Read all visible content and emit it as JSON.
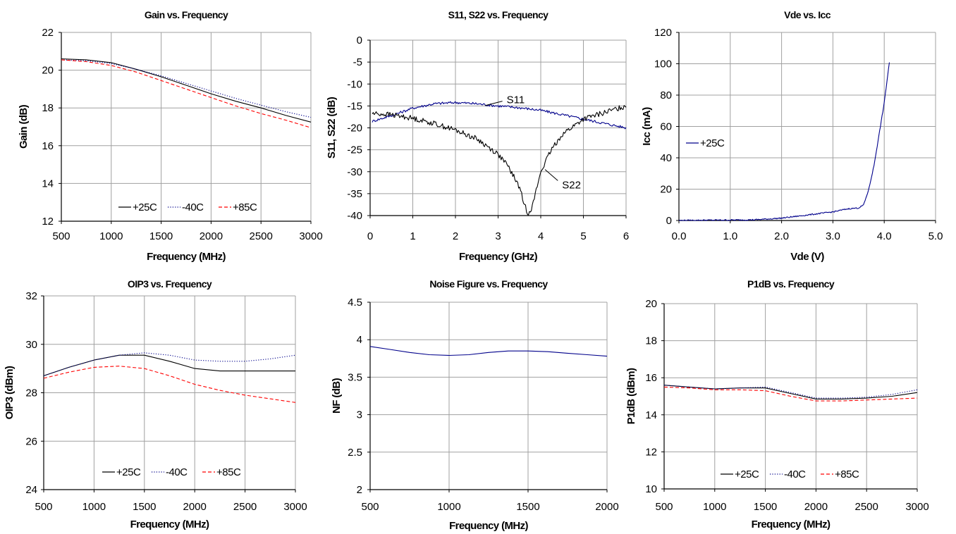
{
  "colors": {
    "t25": "#000000",
    "tm40": "#00008B",
    "t85": "#FF0000",
    "blue": "#00008B",
    "grid": "#A0A0A0"
  },
  "chart_data": [
    {
      "type": "line",
      "title": "Gain vs. Frequency",
      "xlabel": "Frequency (MHz)",
      "ylabel": "Gain (dB)",
      "xlim": [
        500,
        3000
      ],
      "ylim": [
        12,
        22
      ],
      "xticks": [
        500,
        1000,
        1500,
        2000,
        2500,
        3000
      ],
      "yticks": [
        12,
        14,
        16,
        18,
        20,
        22
      ],
      "xtick_labels": [
        "500",
        "1000",
        "1500",
        "2000",
        "2500",
        "3000"
      ],
      "ytick_labels": [
        "12",
        "14",
        "16",
        "18",
        "20",
        "22"
      ],
      "legend_position": "bottom-center",
      "series": [
        {
          "name": "+25C",
          "style": "solid",
          "color": "#000000",
          "in_legend": true,
          "x": [
            500,
            750,
            1000,
            1250,
            1500,
            1750,
            2000,
            2250,
            2500,
            2750,
            3000
          ],
          "y": [
            20.6,
            20.55,
            20.4,
            20.05,
            19.65,
            19.2,
            18.75,
            18.35,
            18.0,
            17.6,
            17.25
          ]
        },
        {
          "name": "-40C",
          "style": "dotted",
          "color": "#00008B",
          "in_legend": true,
          "x": [
            500,
            750,
            1000,
            1250,
            1500,
            1750,
            2000,
            2250,
            2500,
            2750,
            3000
          ],
          "y": [
            20.55,
            20.5,
            20.35,
            20.05,
            19.7,
            19.3,
            18.9,
            18.5,
            18.15,
            17.8,
            17.5
          ]
        },
        {
          "name": "+85C",
          "style": "dashed",
          "color": "#FF0000",
          "in_legend": true,
          "x": [
            500,
            750,
            1000,
            1250,
            1500,
            1750,
            2000,
            2250,
            2500,
            2750,
            3000
          ],
          "y": [
            20.55,
            20.45,
            20.25,
            19.9,
            19.45,
            19.0,
            18.55,
            18.1,
            17.7,
            17.35,
            16.95
          ]
        }
      ]
    },
    {
      "type": "line",
      "title": "S11, S22 vs. Frequency",
      "xlabel": "Frequency (GHz)",
      "ylabel": "S11, S22 (dB)",
      "xlim": [
        0,
        6
      ],
      "ylim": [
        -40,
        0
      ],
      "xticks": [
        0,
        1,
        2,
        3,
        4,
        5,
        6
      ],
      "yticks": [
        -40,
        -35,
        -30,
        -25,
        -20,
        -15,
        -10,
        -5,
        0
      ],
      "xtick_labels": [
        "0",
        "1",
        "2",
        "3",
        "4",
        "5",
        "6"
      ],
      "ytick_labels": [
        "-40",
        "-35",
        "-30",
        "-25",
        "-20",
        "-15",
        "-10",
        "-5",
        "0"
      ],
      "series": [
        {
          "name": "S11",
          "style": "solid",
          "color": "#00008B",
          "in_legend": false,
          "noise": 0.3,
          "x": [
            0.05,
            0.5,
            1,
            1.5,
            2,
            2.5,
            3,
            3.5,
            4,
            4.5,
            5,
            5.5,
            6
          ],
          "y": [
            -18.5,
            -17.2,
            -15.5,
            -14.5,
            -14.2,
            -14.5,
            -15.0,
            -15.4,
            -16.0,
            -17.0,
            -18.0,
            -19.0,
            -20.0
          ]
        },
        {
          "name": "S22",
          "style": "solid",
          "color": "#000000",
          "in_legend": false,
          "noise": 0.6,
          "x": [
            0.05,
            0.5,
            1,
            1.5,
            2,
            2.5,
            3,
            3.25,
            3.5,
            3.6,
            3.7,
            3.8,
            3.9,
            4,
            4.25,
            4.5,
            5,
            5.5,
            6
          ],
          "y": [
            -16.7,
            -17.0,
            -17.8,
            -19.0,
            -20.5,
            -22.5,
            -26.0,
            -29.0,
            -33.5,
            -37.0,
            -39.5,
            -38.0,
            -34.0,
            -30.0,
            -25.0,
            -21.5,
            -18.0,
            -16.5,
            -15.0
          ]
        }
      ],
      "annotations": [
        {
          "text": "S11",
          "x": 3.2,
          "y": -13.6,
          "arrow_to_x": 2.7,
          "arrow_to_y": -14.9
        },
        {
          "text": "S22",
          "x": 4.5,
          "y": -33.0,
          "arrow_to_x": 4.1,
          "arrow_to_y": -29.5
        }
      ]
    },
    {
      "type": "line",
      "title": "Vde vs. Icc",
      "xlabel": "Vde (V)",
      "ylabel": "Icc (mA)",
      "xlim": [
        0,
        5
      ],
      "ylim": [
        0,
        120
      ],
      "xticks": [
        0,
        1,
        2,
        3,
        4,
        5
      ],
      "yticks": [
        0,
        20,
        40,
        60,
        80,
        100,
        120
      ],
      "xtick_labels": [
        "0.0",
        "1.0",
        "2.0",
        "3.0",
        "4.0",
        "5.0"
      ],
      "ytick_labels": [
        "0",
        "20",
        "40",
        "60",
        "80",
        "100",
        "120"
      ],
      "legend_position": "left-middle",
      "series": [
        {
          "name": "+25C",
          "style": "solid",
          "color": "#00008B",
          "in_legend": true,
          "noise": 0.4,
          "x": [
            0,
            0.5,
            1.0,
            1.5,
            2.0,
            2.5,
            3.0,
            3.3,
            3.5,
            3.6,
            3.7,
            3.8,
            3.9,
            4.0,
            4.1
          ],
          "y": [
            0,
            0.2,
            0.3,
            0.5,
            1.5,
            3.5,
            5.5,
            7.5,
            8.0,
            10,
            20,
            35,
            55,
            75,
            101
          ]
        }
      ]
    },
    {
      "type": "line",
      "title": "OIP3 vs. Frequency",
      "xlabel": "Frequency (MHz)",
      "ylabel": "OIP3 (dBm)",
      "xlim": [
        500,
        3000
      ],
      "ylim": [
        24,
        32
      ],
      "xticks": [
        500,
        1000,
        1500,
        2000,
        2500,
        3000
      ],
      "yticks": [
        24,
        26,
        28,
        30,
        32
      ],
      "xtick_labels": [
        "500",
        "1000",
        "1500",
        "2000",
        "2500",
        "3000"
      ],
      "ytick_labels": [
        "24",
        "26",
        "28",
        "30",
        "32"
      ],
      "legend_position": "bottom-center",
      "series": [
        {
          "name": "+25C",
          "style": "solid",
          "color": "#000000",
          "in_legend": true,
          "x": [
            500,
            750,
            1000,
            1250,
            1500,
            1750,
            2000,
            2250,
            2500,
            2750,
            3000
          ],
          "y": [
            28.7,
            29.05,
            29.35,
            29.55,
            29.55,
            29.3,
            29.0,
            28.9,
            28.9,
            28.9,
            28.9
          ]
        },
        {
          "name": "-40C",
          "style": "dotted",
          "color": "#00008B",
          "in_legend": true,
          "x": [
            500,
            750,
            1000,
            1250,
            1500,
            1750,
            2000,
            2250,
            2500,
            2750,
            3000
          ],
          "y": [
            28.7,
            29.05,
            29.35,
            29.55,
            29.65,
            29.55,
            29.35,
            29.3,
            29.3,
            29.4,
            29.55
          ]
        },
        {
          "name": "+85C",
          "style": "dashed",
          "color": "#FF0000",
          "in_legend": true,
          "x": [
            500,
            750,
            1000,
            1250,
            1500,
            1750,
            2000,
            2250,
            2500,
            2750,
            3000
          ],
          "y": [
            28.6,
            28.85,
            29.05,
            29.1,
            29.0,
            28.7,
            28.35,
            28.1,
            27.9,
            27.75,
            27.6
          ]
        }
      ]
    },
    {
      "type": "line",
      "title": "Noise Figure vs. Frequency",
      "xlabel": "Frequency (MHz)",
      "ylabel": "NF (dB)",
      "xlim": [
        500,
        2000
      ],
      "ylim": [
        2,
        4.5
      ],
      "xticks": [
        500,
        1000,
        1500,
        2000
      ],
      "yticks": [
        2,
        2.5,
        3,
        3.5,
        4,
        4.5
      ],
      "xtick_labels": [
        "500",
        "1000",
        "1500",
        "2000"
      ],
      "ytick_labels": [
        "2",
        "2.5",
        "3",
        "3.5",
        "4",
        "4.5"
      ],
      "series": [
        {
          "name": "NF",
          "style": "solid",
          "color": "#00008B",
          "in_legend": false,
          "x": [
            500,
            625,
            750,
            875,
            1000,
            1125,
            1250,
            1375,
            1500,
            1625,
            1750,
            1875,
            2000
          ],
          "y": [
            3.91,
            3.87,
            3.83,
            3.8,
            3.79,
            3.8,
            3.83,
            3.85,
            3.85,
            3.84,
            3.82,
            3.8,
            3.78
          ]
        }
      ]
    },
    {
      "type": "line",
      "title": "P1dB vs. Frequency",
      "xlabel": "Frequency (MHz)",
      "ylabel": "P1dB (dBm)",
      "xlim": [
        500,
        3000
      ],
      "ylim": [
        10,
        20
      ],
      "xticks": [
        500,
        1000,
        1500,
        2000,
        2500,
        3000
      ],
      "yticks": [
        10,
        12,
        14,
        16,
        18,
        20
      ],
      "xtick_labels": [
        "500",
        "1000",
        "1500",
        "2000",
        "2500",
        "3000"
      ],
      "ytick_labels": [
        "10",
        "12",
        "14",
        "16",
        "18",
        "20"
      ],
      "legend_position": "bottom-center",
      "series": [
        {
          "name": "+25C",
          "style": "solid",
          "color": "#000000",
          "in_legend": true,
          "x": [
            500,
            750,
            1000,
            1250,
            1500,
            1750,
            2000,
            2250,
            2500,
            2750,
            3000
          ],
          "y": [
            15.6,
            15.5,
            15.4,
            15.45,
            15.45,
            15.15,
            14.85,
            14.85,
            14.9,
            15.0,
            15.2
          ]
        },
        {
          "name": "-40C",
          "style": "dotted",
          "color": "#00008B",
          "in_legend": true,
          "x": [
            500,
            750,
            1000,
            1250,
            1500,
            1750,
            2000,
            2250,
            2500,
            2750,
            3000
          ],
          "y": [
            15.6,
            15.5,
            15.4,
            15.45,
            15.5,
            15.2,
            14.9,
            14.9,
            14.95,
            15.1,
            15.35
          ]
        },
        {
          "name": "+85C",
          "style": "dashed",
          "color": "#FF0000",
          "in_legend": true,
          "x": [
            500,
            750,
            1000,
            1250,
            1500,
            1750,
            2000,
            2250,
            2500,
            2750,
            3000
          ],
          "y": [
            15.5,
            15.45,
            15.35,
            15.35,
            15.3,
            15.0,
            14.75,
            14.75,
            14.8,
            14.85,
            14.9
          ]
        }
      ]
    }
  ]
}
